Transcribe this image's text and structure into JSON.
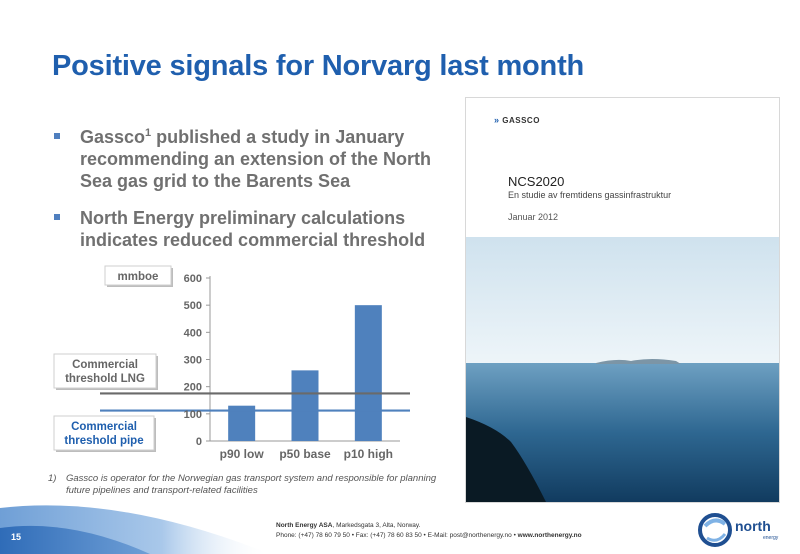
{
  "title": "Positive signals for Norvarg last month",
  "bullets": [
    {
      "text": "Gassco",
      "sup": "1",
      "rest": " published a study in January recommending an extension of the North Sea gas grid to the Barents Sea"
    },
    {
      "text": "North Energy preliminary calculations indicates reduced commercial threshold"
    }
  ],
  "chart_data": {
    "type": "bar",
    "unit_label": "mmboe",
    "categories": [
      "p90 low",
      "p50 base",
      "p10 high"
    ],
    "values": [
      130,
      260,
      500
    ],
    "ylim": [
      0,
      600
    ],
    "yticks": [
      "0",
      "100",
      "200",
      "300",
      "400",
      "500",
      "600"
    ],
    "bar_color": "#4f81bd",
    "thresholds": [
      {
        "label_line1": "Commercial",
        "label_line2": "threshold LNG",
        "value": 175,
        "color": "#6a6a6a"
      },
      {
        "label_line1": "Commercial",
        "label_line2": "threshold pipe",
        "value": 112,
        "color": "#4f81bd"
      }
    ]
  },
  "footnote": {
    "number": "1)",
    "text": "Gassco is operator for the Norwegian gas transport system and responsible for planning future pipelines and transport-related facilities"
  },
  "cover": {
    "logo": "GASSCO",
    "title": "NCS2020",
    "subtitle": "En studie av fremtidens gassinfrastruktur",
    "date": "Januar 2012"
  },
  "footer": {
    "page_number": "15",
    "company": "North Energy ASA",
    "address": ", Markedsgata 3, Alta, Norway.",
    "contact": "Phone: (+47) 78 60 79 50  • Fax: (+47) 78 60 83 50  • E-Mail: post@northenergy.no  • ",
    "website": "www.northenergy.no",
    "logo_word": "north",
    "logo_sub": "energy"
  },
  "colors": {
    "title": "#1f5fae",
    "accent": "#4f81bd",
    "text_gray": "#707070"
  }
}
